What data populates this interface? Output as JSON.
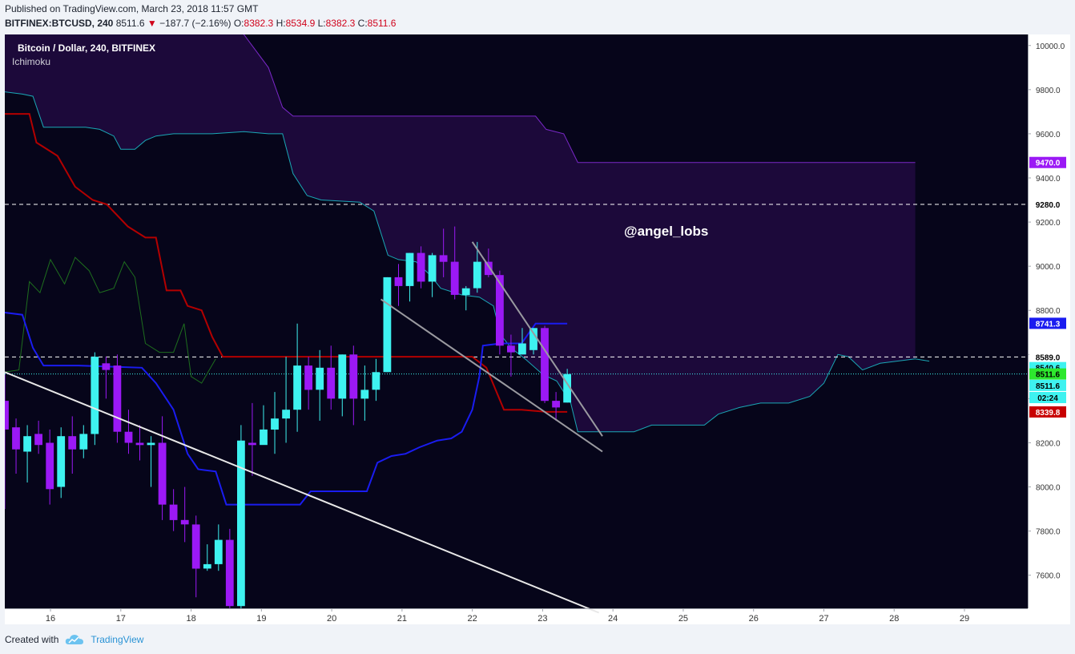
{
  "header": {
    "published": "Published on TradingView.com, March 23, 2018 11:57 GMT",
    "symbol": "BITFINEX:BTCUSD, 240",
    "last": "8511.6",
    "change": "−187.7 (−2.16%)",
    "o_label": "O:",
    "o_value": "8382.3",
    "h_label": "H:",
    "h_value": "8534.9",
    "l_label": "L:",
    "l_value": "8382.3",
    "c_label": "C:",
    "c_value": "8511.6"
  },
  "legend": {
    "title": "Bitcoin / Dollar, 240, BITFINEX",
    "indicator": "Ichimoku"
  },
  "watermark": "@angel_lobs",
  "footer": {
    "created": "Created with",
    "brand": "TradingView"
  },
  "colors": {
    "background": "#06051a",
    "bull": "#3ef2f0",
    "bear": "#9b19f5",
    "kijun": "#b30000",
    "tenkan": "#1a1cf0",
    "chikou": "#1e6e1e",
    "cloud_line": "#1aa7b5",
    "cloud_upper": "#7a28c8",
    "cloud_fill": "#1d0a3c",
    "trendline": "#e8e8e8",
    "wedge": "#9a9aa0"
  },
  "chart_data": {
    "type": "candlestick",
    "title": "Bitcoin / Dollar, 240, BITFINEX",
    "indicator": "Ichimoku",
    "y_range": [
      7450,
      10050
    ],
    "y_ticks": [
      "7600.0",
      "7800.0",
      "8000.0",
      "8200.0",
      "8400.0",
      "8600.0",
      "8800.0",
      "9000.0",
      "9200.0",
      "9400.0",
      "9600.0",
      "9800.0",
      "10000.0"
    ],
    "x_range": [
      15.35,
      29.9
    ],
    "x_ticks": [
      {
        "x": 16,
        "label": "16"
      },
      {
        "x": 17,
        "label": "17"
      },
      {
        "x": 18,
        "label": "18"
      },
      {
        "x": 19,
        "label": "19"
      },
      {
        "x": 20,
        "label": "20"
      },
      {
        "x": 21,
        "label": "21"
      },
      {
        "x": 22,
        "label": "22"
      },
      {
        "x": 23,
        "label": "23"
      },
      {
        "x": 24,
        "label": "24"
      },
      {
        "x": 25,
        "label": "25"
      },
      {
        "x": 26,
        "label": "26"
      },
      {
        "x": 27,
        "label": "27"
      },
      {
        "x": 28,
        "label": "28"
      },
      {
        "x": 29,
        "label": "29"
      }
    ],
    "candles_ohlc": [
      [
        8390,
        8510,
        7900,
        8260
      ],
      [
        8270,
        8310,
        8060,
        8170
      ],
      [
        8160,
        8280,
        8020,
        8230
      ],
      [
        8240,
        8300,
        8150,
        8190
      ],
      [
        8200,
        8260,
        7920,
        7990
      ],
      [
        8000,
        8270,
        7950,
        8230
      ],
      [
        8230,
        8320,
        8060,
        8170
      ],
      [
        8170,
        8280,
        8130,
        8240
      ],
      [
        8240,
        8610,
        8190,
        8590
      ],
      [
        8560,
        8590,
        8400,
        8530
      ],
      [
        8550,
        8600,
        8200,
        8250
      ],
      [
        8250,
        8350,
        8150,
        8200
      ],
      [
        8200,
        8280,
        8120,
        8190
      ],
      [
        8190,
        8230,
        8000,
        8200
      ],
      [
        8200,
        8320,
        7850,
        7920
      ],
      [
        7920,
        7990,
        7800,
        7850
      ],
      [
        7850,
        8000,
        7750,
        7830
      ],
      [
        7830,
        7870,
        7500,
        7630
      ],
      [
        7630,
        7740,
        7620,
        7650
      ],
      [
        7650,
        7830,
        7620,
        7760
      ],
      [
        7760,
        7810,
        7450,
        7460
      ],
      [
        7460,
        8280,
        7450,
        8210
      ],
      [
        8200,
        8380,
        8050,
        8190
      ],
      [
        8190,
        8370,
        8200,
        8260
      ],
      [
        8260,
        8430,
        8150,
        8310
      ],
      [
        8310,
        8590,
        8200,
        8350
      ],
      [
        8350,
        8740,
        8250,
        8550
      ],
      [
        8550,
        8590,
        8350,
        8440
      ],
      [
        8440,
        8620,
        8300,
        8540
      ],
      [
        8540,
        8640,
        8350,
        8400
      ],
      [
        8400,
        8600,
        8320,
        8600
      ],
      [
        8600,
        8640,
        8280,
        8400
      ],
      [
        8400,
        8550,
        8300,
        8440
      ],
      [
        8440,
        8580,
        8390,
        8520
      ],
      [
        8520,
        8950,
        8520,
        8950
      ],
      [
        8950,
        9010,
        8820,
        8910
      ],
      [
        8910,
        9060,
        8840,
        9060
      ],
      [
        9060,
        9090,
        8900,
        8930
      ],
      [
        8930,
        9060,
        8860,
        9050
      ],
      [
        9050,
        9170,
        8950,
        9020
      ],
      [
        9020,
        9180,
        8850,
        8870
      ],
      [
        8870,
        8910,
        8800,
        8900
      ],
      [
        8900,
        9110,
        8880,
        9020
      ],
      [
        9020,
        9080,
        8950,
        8960
      ],
      [
        8960,
        8980,
        8600,
        8640
      ],
      [
        8640,
        8690,
        8500,
        8610
      ],
      [
        8600,
        8720,
        8600,
        8650
      ],
      [
        8620,
        8720,
        8600,
        8720
      ],
      [
        8720,
        8730,
        8380,
        8390
      ],
      [
        8390,
        8430,
        8300,
        8360
      ],
      [
        8382.3,
        8534.9,
        8382.3,
        8511.6
      ]
    ],
    "kijun_sen": [
      [
        15.35,
        9690
      ],
      [
        15.7,
        9690
      ],
      [
        15.8,
        9560
      ],
      [
        15.9,
        9540
      ],
      [
        16.1,
        9500
      ],
      [
        16.35,
        9360
      ],
      [
        16.6,
        9300
      ],
      [
        16.8,
        9280
      ],
      [
        17.1,
        9180
      ],
      [
        17.35,
        9130
      ],
      [
        17.5,
        9130
      ],
      [
        17.65,
        8890
      ],
      [
        17.85,
        8890
      ],
      [
        17.95,
        8820
      ],
      [
        18.15,
        8800
      ],
      [
        18.3,
        8680
      ],
      [
        18.45,
        8590
      ],
      [
        19.1,
        8590
      ],
      [
        19.8,
        8590
      ],
      [
        21.5,
        8590
      ],
      [
        22.0,
        8590
      ],
      [
        22.2,
        8540
      ],
      [
        22.45,
        8350
      ],
      [
        22.7,
        8350
      ],
      [
        23.05,
        8340
      ],
      [
        23.35,
        8340
      ]
    ],
    "tenkan_sen": [
      [
        15.35,
        8790
      ],
      [
        15.6,
        8780
      ],
      [
        15.75,
        8630
      ],
      [
        15.9,
        8550
      ],
      [
        16.4,
        8550
      ],
      [
        17.3,
        8540
      ],
      [
        17.5,
        8470
      ],
      [
        17.75,
        8350
      ],
      [
        17.95,
        8150
      ],
      [
        18.1,
        8080
      ],
      [
        18.35,
        8070
      ],
      [
        18.5,
        7920
      ],
      [
        19.25,
        7920
      ],
      [
        19.55,
        7920
      ],
      [
        19.7,
        7980
      ],
      [
        20.3,
        7980
      ],
      [
        20.5,
        7980
      ],
      [
        20.65,
        8110
      ],
      [
        20.85,
        8140
      ],
      [
        21.05,
        8150
      ],
      [
        21.25,
        8180
      ],
      [
        21.5,
        8210
      ],
      [
        21.7,
        8220
      ],
      [
        21.85,
        8250
      ],
      [
        22.0,
        8350
      ],
      [
        22.1,
        8500
      ],
      [
        22.15,
        8640
      ],
      [
        22.4,
        8650
      ],
      [
        22.7,
        8650
      ],
      [
        22.9,
        8740
      ],
      [
        23.35,
        8740
      ]
    ],
    "chikou_span": [
      [
        15.35,
        8520
      ],
      [
        15.55,
        8530
      ],
      [
        15.7,
        8930
      ],
      [
        15.85,
        8880
      ],
      [
        16.0,
        9030
      ],
      [
        16.2,
        8920
      ],
      [
        16.35,
        9040
      ],
      [
        16.55,
        8980
      ],
      [
        16.7,
        8880
      ],
      [
        16.9,
        8900
      ],
      [
        17.05,
        9020
      ],
      [
        17.2,
        8950
      ],
      [
        17.35,
        8650
      ],
      [
        17.55,
        8610
      ],
      [
        17.75,
        8610
      ],
      [
        17.9,
        8740
      ],
      [
        18.0,
        8500
      ],
      [
        18.15,
        8470
      ],
      [
        18.35,
        8580
      ]
    ],
    "senkou_span_upper": [
      [
        15.35,
        10200
      ],
      [
        18.05,
        10200
      ],
      [
        18.75,
        10050
      ],
      [
        19.1,
        9900
      ],
      [
        19.3,
        9720
      ],
      [
        19.45,
        9680
      ],
      [
        20.5,
        9680
      ],
      [
        21.5,
        9680
      ],
      [
        22.0,
        9680
      ],
      [
        22.3,
        9680
      ],
      [
        22.9,
        9680
      ],
      [
        23.05,
        9620
      ],
      [
        23.3,
        9600
      ],
      [
        23.5,
        9470
      ],
      [
        28.3,
        9470
      ]
    ],
    "senkou_span_lower": [
      [
        15.35,
        9790
      ],
      [
        15.6,
        9780
      ],
      [
        15.75,
        9770
      ],
      [
        15.9,
        9630
      ],
      [
        16.5,
        9630
      ],
      [
        16.7,
        9620
      ],
      [
        16.9,
        9590
      ],
      [
        17.0,
        9530
      ],
      [
        17.2,
        9530
      ],
      [
        17.35,
        9570
      ],
      [
        17.5,
        9590
      ],
      [
        17.75,
        9600
      ],
      [
        18.3,
        9600
      ],
      [
        18.75,
        9610
      ],
      [
        19.1,
        9600
      ],
      [
        19.3,
        9600
      ],
      [
        19.45,
        9420
      ],
      [
        19.65,
        9320
      ],
      [
        19.85,
        9300
      ],
      [
        20.4,
        9290
      ],
      [
        20.6,
        9250
      ],
      [
        20.8,
        9050
      ],
      [
        20.95,
        9030
      ],
      [
        21.2,
        9020
      ],
      [
        21.4,
        8960
      ],
      [
        21.55,
        8900
      ],
      [
        21.85,
        8870
      ],
      [
        22.1,
        8860
      ],
      [
        22.3,
        8820
      ],
      [
        22.4,
        8690
      ],
      [
        22.55,
        8630
      ],
      [
        22.75,
        8580
      ],
      [
        23.0,
        8510
      ],
      [
        23.2,
        8480
      ],
      [
        23.4,
        8380
      ],
      [
        23.5,
        8250
      ],
      [
        24.3,
        8250
      ],
      [
        24.55,
        8280
      ],
      [
        24.85,
        8280
      ],
      [
        25.3,
        8280
      ],
      [
        25.5,
        8330
      ],
      [
        25.8,
        8360
      ],
      [
        26.1,
        8380
      ],
      [
        26.5,
        8380
      ],
      [
        26.8,
        8410
      ],
      [
        27.0,
        8470
      ],
      [
        27.2,
        8600
      ],
      [
        27.35,
        8590
      ],
      [
        27.55,
        8530
      ],
      [
        27.8,
        8560
      ],
      [
        28.3,
        8580
      ],
      [
        28.5,
        8570
      ]
    ],
    "trendlines": [
      [
        [
          15.35,
          8520
        ],
        [
          23.8,
          7430
        ]
      ]
    ],
    "wedge_lines": [
      [
        [
          20.7,
          8850
        ],
        [
          23.85,
          8160
        ]
      ],
      [
        [
          22.0,
          9110
        ],
        [
          23.85,
          8230
        ]
      ]
    ],
    "horizontal_levels": [
      {
        "value": 9280,
        "label": "9280.0",
        "style": "dashed"
      },
      {
        "value": 8589,
        "label": "8589.0",
        "style": "dashed"
      },
      {
        "value": 8511.6,
        "style": "dotted"
      }
    ],
    "price_labels": [
      {
        "value": 9470,
        "label": "9470.0",
        "color": "#9b19f5"
      },
      {
        "value": 9280,
        "label": "9280.0",
        "color": "#ffffff"
      },
      {
        "value": 8741.3,
        "label": "8741.3",
        "color": "#1a1cf0"
      },
      {
        "value": 8589,
        "label": "8589.0",
        "color": "#ffffff"
      },
      {
        "value": 8540.6,
        "label": "8540.6",
        "color": "#3ef2f0"
      },
      {
        "value": 8511.6,
        "label": "8511.6",
        "color": "#2ee82e"
      },
      {
        "value": 8460,
        "label": "8511.6",
        "color": "#3ef2f0"
      },
      {
        "value": 8405,
        "label": "02:24",
        "color": "#3ef2f0"
      },
      {
        "value": 8339.8,
        "label": "8339.8",
        "color": "#c80000"
      }
    ]
  }
}
